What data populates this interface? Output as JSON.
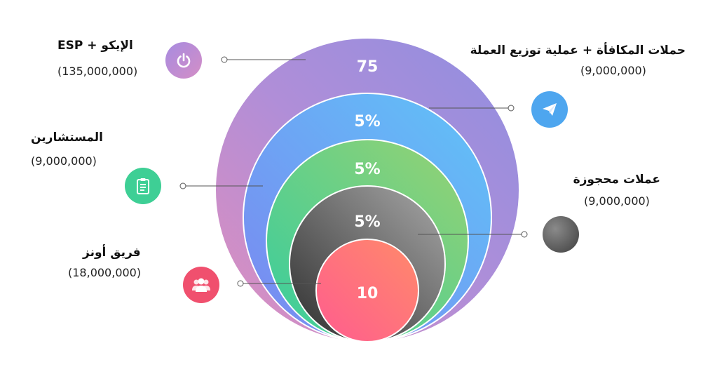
{
  "rings": [
    {
      "id": "ico",
      "label": "75"
    },
    {
      "id": "bounty",
      "label": "5%"
    },
    {
      "id": "advisors",
      "label": "5%"
    },
    {
      "id": "reserve",
      "label": "5%"
    },
    {
      "id": "team",
      "label": "10"
    }
  ],
  "items": {
    "ico": {
      "title": "الإيكو + ESP",
      "amount": "(135,000,000)",
      "icon": "power-icon"
    },
    "advisors": {
      "title": "المستشارين",
      "amount": "(9,000,000)",
      "icon": "clipboard-icon"
    },
    "team": {
      "title": "فريق أونز",
      "amount": "(18,000,000)",
      "icon": "team-icon"
    },
    "bounty": {
      "title": "حملات المكافأة + عملية توزيع العملة",
      "amount": "(9,000,000)",
      "icon": "paper-plane-icon"
    },
    "reserve": {
      "title": "عملات محجوزة",
      "amount": "(9,000,000)",
      "icon": "coin-icon"
    }
  },
  "colors": {
    "ico_gradient": [
      "#9b8cde",
      "#d98ec0"
    ],
    "bounty_gradient": [
      "#5fb8f7",
      "#7a8cf0"
    ],
    "advisors_gradient": [
      "#86d07a",
      "#3ecf98"
    ],
    "reserve_gradient": [
      "#9a9a9a",
      "#3a3a3a"
    ],
    "team_gradient": [
      "#ff7a6e",
      "#ff5f8e"
    ],
    "connector_line": "#555555"
  }
}
